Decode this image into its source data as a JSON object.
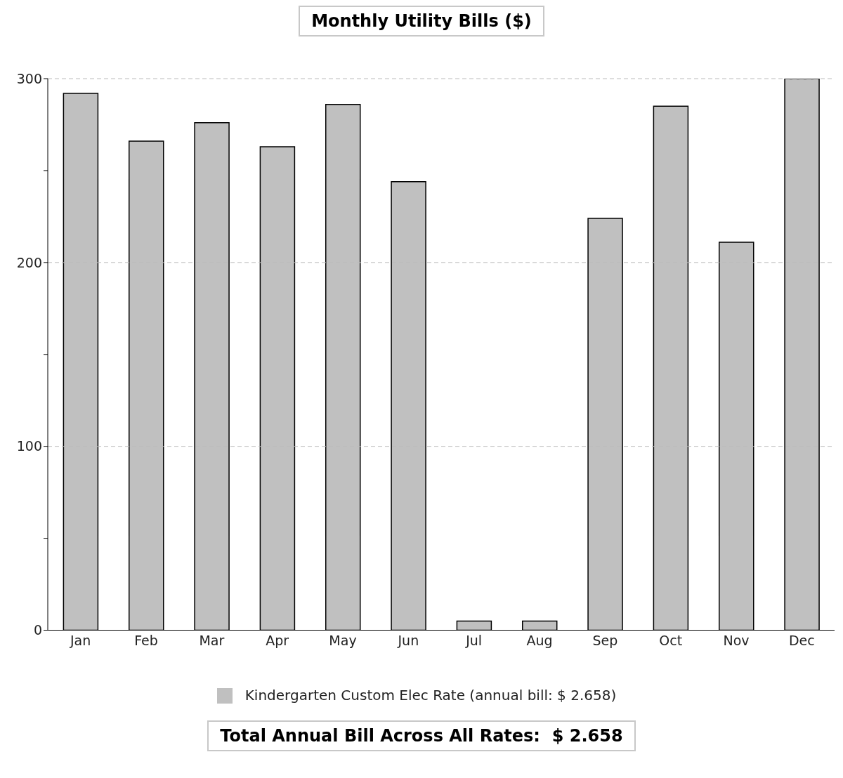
{
  "chart_data": {
    "type": "bar",
    "title": "Monthly Utility Bills ($)",
    "categories": [
      "Jan",
      "Feb",
      "Mar",
      "Apr",
      "May",
      "Jun",
      "Jul",
      "Aug",
      "Sep",
      "Oct",
      "Nov",
      "Dec"
    ],
    "series": [
      {
        "name": "Kindergarten Custom Elec Rate (annual bill: $ 2.658)",
        "color": "#c0c0c0",
        "values": [
          292,
          266,
          276,
          263,
          286,
          244,
          5,
          5,
          224,
          285,
          211,
          300
        ]
      }
    ],
    "ylim": [
      0,
      300
    ],
    "yticks": [
      0,
      {
        "value": 50,
        "label": null
      },
      100,
      {
        "value": 150,
        "label": null
      },
      200,
      {
        "value": 250,
        "label": null
      },
      300
    ],
    "grid": "y",
    "legend": "bottom",
    "annotations": [
      "Total Annual Bill Across All Rates:  $ 2.658"
    ]
  }
}
